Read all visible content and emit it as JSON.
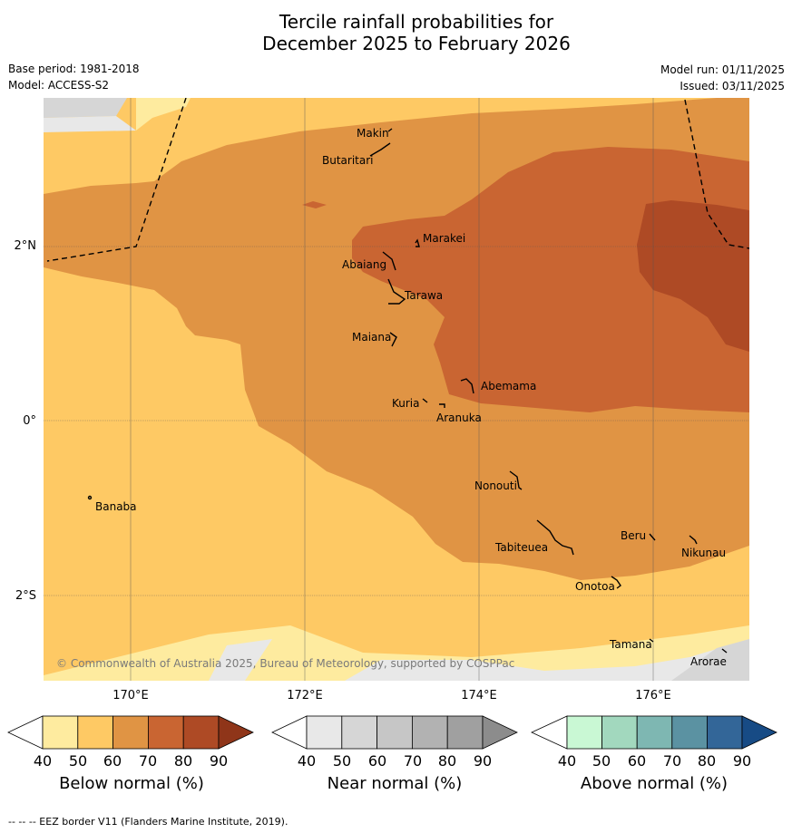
{
  "title_line1": "Tercile rainfall probabilities for",
  "title_line2": "December 2025 to February 2026",
  "base_period": "Base period: 1981-2018",
  "model": "Model: ACCESS-S2",
  "model_run": "Model run: 01/11/2025",
  "issued": "Issued: 03/11/2025",
  "copyright": "© Commonwealth of Australia 2025, Bureau of Meteorology, supported by COSPPac",
  "footer": "--  --  -- EEZ border V11 (Flanders Marine Institute, 2019).",
  "axes": {
    "lon_labels": [
      "170°E",
      "172°E",
      "174°E",
      "176°E"
    ],
    "lat_labels": [
      "2°N",
      "0°",
      "2°S"
    ]
  },
  "places": [
    {
      "name": "Makin"
    },
    {
      "name": "Butaritari"
    },
    {
      "name": "Marakei"
    },
    {
      "name": "Abaiang"
    },
    {
      "name": "Tarawa"
    },
    {
      "name": "Maiana"
    },
    {
      "name": "Abemama"
    },
    {
      "name": "Kuria"
    },
    {
      "name": "Aranuka"
    },
    {
      "name": "Banaba"
    },
    {
      "name": "Nonouti"
    },
    {
      "name": "Beru"
    },
    {
      "name": "Tabiteuea"
    },
    {
      "name": "Nikunau"
    },
    {
      "name": "Onotoa"
    },
    {
      "name": "Tamana"
    },
    {
      "name": "Arorae"
    }
  ],
  "legends": [
    {
      "title": "Below normal (%)",
      "ticks": [
        "40",
        "50",
        "60",
        "70",
        "80",
        "90"
      ],
      "colors": [
        "#ffffff",
        "#feeb9f",
        "#fec964",
        "#e09444",
        "#c96532",
        "#ae4a25",
        "#8f3519"
      ]
    },
    {
      "title": "Near normal (%)",
      "ticks": [
        "40",
        "50",
        "60",
        "70",
        "80",
        "90"
      ],
      "colors": [
        "#ffffff",
        "#e8e8e8",
        "#d6d6d6",
        "#c6c6c6",
        "#b2b2b2",
        "#a0a0a0",
        "#8c8c8c"
      ]
    },
    {
      "title": "Above normal (%)",
      "ticks": [
        "40",
        "50",
        "60",
        "70",
        "80",
        "90"
      ],
      "colors": [
        "#ffffff",
        "#c9f8d4",
        "#a2d8be",
        "#7eb7b2",
        "#5b92a2",
        "#336698",
        "#174b85"
      ]
    }
  ]
}
